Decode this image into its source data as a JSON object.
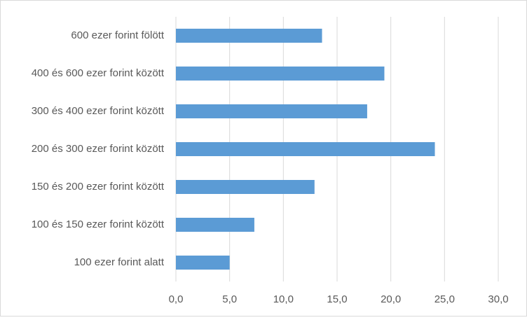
{
  "chart_data": {
    "type": "hbar",
    "categories": [
      "600 ezer forint fölött",
      "400 és 600 ezer forint között",
      "300 és 400 ezer forint között",
      "200 és 300 ezer forint között",
      "150 és 200 ezer forint között",
      "100 és 150 ezer forint között",
      "100 ezer forint alatt"
    ],
    "values": [
      13.6,
      19.4,
      17.8,
      24.1,
      12.9,
      7.3,
      5.0
    ],
    "color": "#5b9bd5",
    "xlim": [
      0,
      30
    ],
    "xticks": [
      {
        "value": 0,
        "label": "0,0"
      },
      {
        "value": 5,
        "label": "5,0"
      },
      {
        "value": 10,
        "label": "10,0"
      },
      {
        "value": 15,
        "label": "15,0"
      },
      {
        "value": 20,
        "label": "20,0"
      },
      {
        "value": 25,
        "label": "25,0"
      },
      {
        "value": 30,
        "label": "30,0"
      }
    ],
    "grid": true
  }
}
